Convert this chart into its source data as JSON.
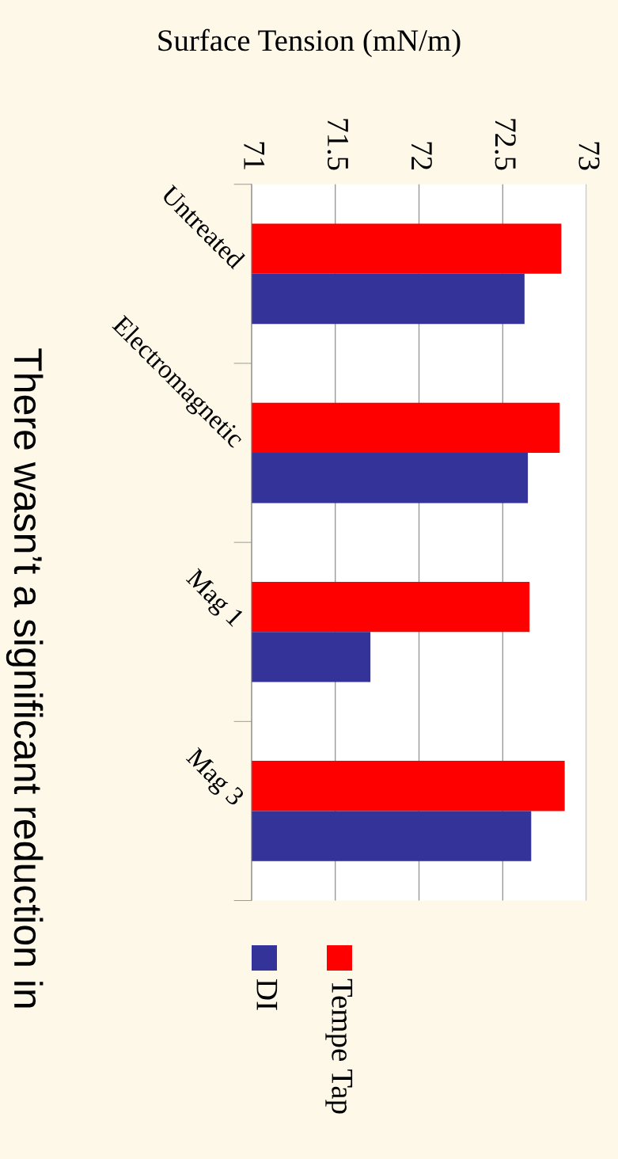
{
  "chart_data": {
    "type": "bar",
    "orientation": "horizontal",
    "title": "Surface Tension (mN/m)",
    "categories": [
      "Untreated",
      "Electromagnetic",
      "Mag 1",
      "Mag 3"
    ],
    "series": [
      {
        "name": "Tempe Tap",
        "color": "#ff0000",
        "values": [
          72.85,
          72.84,
          72.66,
          72.87
        ]
      },
      {
        "name": "DI",
        "color": "#333399",
        "values": [
          72.63,
          72.65,
          71.71,
          72.67
        ]
      }
    ],
    "xlim": [
      71,
      73
    ],
    "xticks": [
      71,
      71.5,
      72,
      72.5,
      73
    ],
    "grid": "x",
    "legend": "bottom",
    "annotations": [
      "There wasn’t a significant reduction in"
    ]
  }
}
